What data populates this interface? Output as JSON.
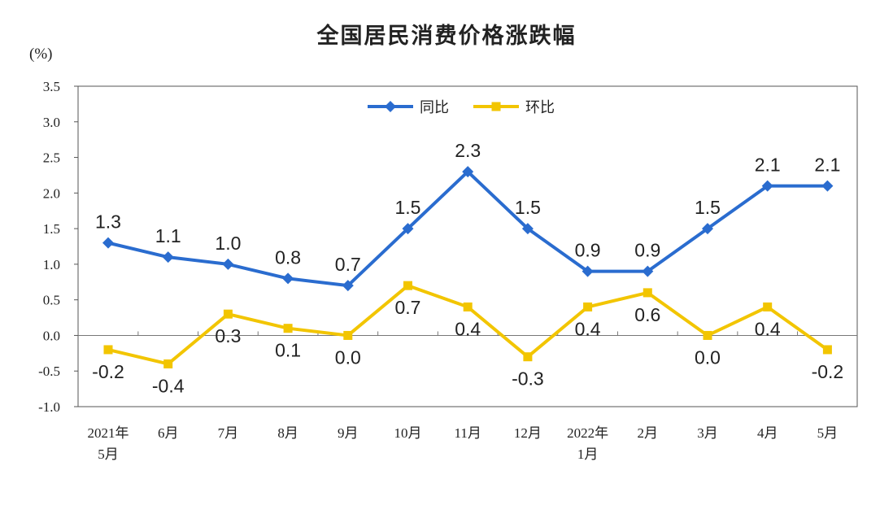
{
  "chart_data": {
    "type": "line",
    "title": "全国居民消费价格涨跌幅",
    "unit_label": "(%)",
    "categories": [
      [
        "2021年",
        "5月"
      ],
      [
        "6月"
      ],
      [
        "7月"
      ],
      [
        "8月"
      ],
      [
        "9月"
      ],
      [
        "10月"
      ],
      [
        "11月"
      ],
      [
        "12月"
      ],
      [
        "2022年",
        "1月"
      ],
      [
        "2月"
      ],
      [
        "3月"
      ],
      [
        "4月"
      ],
      [
        "5月"
      ]
    ],
    "y_ticks": [
      "3.5",
      "3.0",
      "2.5",
      "2.0",
      "1.5",
      "1.0",
      "0.5",
      "0.0",
      "-0.5",
      "-1.0"
    ],
    "ylim": [
      -1.0,
      3.5
    ],
    "grid": false,
    "legend_position": "top-center",
    "series": [
      {
        "name": "同比",
        "color": "#2a6ccf",
        "marker": "diamond",
        "values": [
          1.3,
          1.1,
          1.0,
          0.8,
          0.7,
          1.5,
          2.3,
          1.5,
          0.9,
          0.9,
          1.5,
          2.1,
          2.1
        ],
        "labels": [
          "1.3",
          "1.1",
          "1.0",
          "0.8",
          "0.7",
          "1.5",
          "2.3",
          "1.5",
          "0.9",
          "0.9",
          "1.5",
          "2.1",
          "2.1"
        ]
      },
      {
        "name": "环比",
        "color": "#f2c500",
        "marker": "square",
        "values": [
          -0.2,
          -0.4,
          0.3,
          0.1,
          0.0,
          0.7,
          0.4,
          -0.3,
          0.4,
          0.6,
          0.0,
          0.4,
          -0.2
        ],
        "labels": [
          "-0.2",
          "-0.4",
          "0.3",
          "0.1",
          "0.0",
          "0.7",
          "0.4",
          "-0.3",
          "0.4",
          "0.6",
          "0.0",
          "0.4",
          "-0.2"
        ]
      }
    ]
  }
}
